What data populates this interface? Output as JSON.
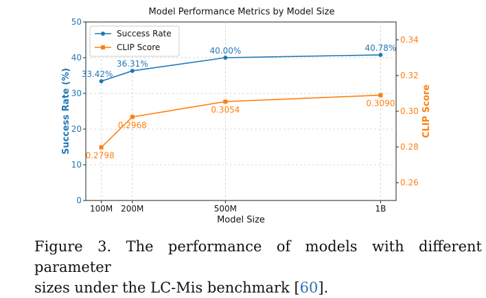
{
  "chart_data": {
    "type": "line",
    "title": "Model Performance Metrics by Model Size",
    "xlabel": "Model Size",
    "x_categories": [
      "100M",
      "200M",
      "500M",
      "1B"
    ],
    "x_values": [
      100,
      200,
      500,
      1000
    ],
    "xlim": [
      50,
      1050
    ],
    "y_left": {
      "label": "Success Rate (%)",
      "ylim": [
        0,
        50
      ],
      "ticks": [
        0,
        10,
        20,
        30,
        40,
        50
      ],
      "color": "#1f77b4"
    },
    "y_right": {
      "label": "CLIP Score",
      "ylim": [
        0.25,
        0.35
      ],
      "ticks": [
        "0.26",
        "0.28",
        "0.30",
        "0.32",
        "0.34"
      ],
      "color": "#ff7f0e"
    },
    "grid": true,
    "legend_position": "top-left",
    "series": [
      {
        "name": "Success Rate",
        "axis": "left",
        "color": "#1f77b4",
        "values": [
          33.42,
          36.31,
          40.0,
          40.78
        ],
        "labels": [
          "33.42%",
          "36.31%",
          "40.00%",
          "40.78%"
        ]
      },
      {
        "name": "CLIP Score",
        "axis": "right",
        "color": "#ff7f0e",
        "values": [
          0.2798,
          0.2968,
          0.3054,
          0.309
        ],
        "labels": [
          "0.2798",
          "0.2968",
          "0.3054",
          "0.3090"
        ]
      }
    ]
  },
  "caption": {
    "line1": "Figure 3.  The performance of models with different parameter",
    "line2_prefix": "sizes under the LC-Mis benchmark [",
    "ref": "60",
    "line2_suffix": "]."
  }
}
